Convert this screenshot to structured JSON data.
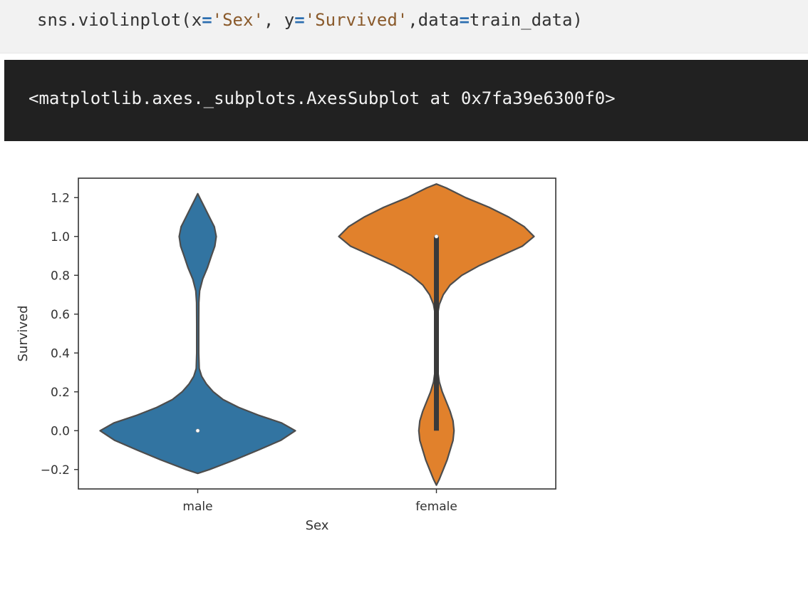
{
  "code_cell": {
    "func": "sns.violinplot",
    "open": "(x",
    "eq1": "=",
    "x_str": "'Sex'",
    "sep1": ", y",
    "eq2": "=",
    "y_str": "'Survived'",
    "sep2": ",data",
    "eq3": "=",
    "data_name": "train_data)"
  },
  "output_cell": {
    "text": "<matplotlib.axes._subplots.AxesSubplot at 0x7fa39e6300f0>"
  },
  "colors": {
    "male": "#3274a1",
    "female": "#e1812c",
    "outline": "#4d4d4d"
  },
  "chart_data": {
    "type": "violin",
    "xlabel": "Sex",
    "ylabel": "Survived",
    "ylim": [
      -0.3,
      1.3
    ],
    "yticks": [
      "−0.2",
      "0.0",
      "0.2",
      "0.4",
      "0.6",
      "0.8",
      "1.0",
      "1.2"
    ],
    "yticks_values": [
      -0.2,
      0.0,
      0.2,
      0.4,
      0.6,
      0.8,
      1.0,
      1.2
    ],
    "categories": [
      "male",
      "female"
    ],
    "violins": [
      {
        "category": "male",
        "color": "#3274a1",
        "median": 0.0,
        "q1": 0.0,
        "q3": 0.0,
        "density": [
          [
            -0.22,
            0.0
          ],
          [
            -0.2,
            0.12
          ],
          [
            -0.15,
            0.38
          ],
          [
            -0.1,
            0.62
          ],
          [
            -0.05,
            0.85
          ],
          [
            0.0,
            1.0
          ],
          [
            0.04,
            0.86
          ],
          [
            0.08,
            0.62
          ],
          [
            0.12,
            0.42
          ],
          [
            0.16,
            0.26
          ],
          [
            0.2,
            0.16
          ],
          [
            0.24,
            0.09
          ],
          [
            0.28,
            0.04
          ],
          [
            0.32,
            0.015
          ],
          [
            0.4,
            0.01
          ],
          [
            0.55,
            0.01
          ],
          [
            0.66,
            0.012
          ],
          [
            0.72,
            0.02
          ],
          [
            0.78,
            0.05
          ],
          [
            0.84,
            0.1
          ],
          [
            0.9,
            0.14
          ],
          [
            0.95,
            0.175
          ],
          [
            1.0,
            0.19
          ],
          [
            1.05,
            0.17
          ],
          [
            1.1,
            0.12
          ],
          [
            1.15,
            0.07
          ],
          [
            1.19,
            0.03
          ],
          [
            1.22,
            0.0
          ]
        ]
      },
      {
        "category": "female",
        "color": "#e1812c",
        "median": 1.0,
        "q1": 0.0,
        "q3": 1.0,
        "density": [
          [
            -0.28,
            0.0
          ],
          [
            -0.25,
            0.03
          ],
          [
            -0.2,
            0.07
          ],
          [
            -0.15,
            0.11
          ],
          [
            -0.1,
            0.14
          ],
          [
            -0.05,
            0.17
          ],
          [
            0.0,
            0.18
          ],
          [
            0.05,
            0.17
          ],
          [
            0.1,
            0.14
          ],
          [
            0.15,
            0.1
          ],
          [
            0.2,
            0.06
          ],
          [
            0.25,
            0.03
          ],
          [
            0.3,
            0.015
          ],
          [
            0.4,
            0.01
          ],
          [
            0.5,
            0.01
          ],
          [
            0.6,
            0.012
          ],
          [
            0.65,
            0.03
          ],
          [
            0.7,
            0.07
          ],
          [
            0.75,
            0.14
          ],
          [
            0.8,
            0.26
          ],
          [
            0.85,
            0.44
          ],
          [
            0.9,
            0.66
          ],
          [
            0.95,
            0.88
          ],
          [
            1.0,
            1.0
          ],
          [
            1.05,
            0.9
          ],
          [
            1.1,
            0.74
          ],
          [
            1.15,
            0.54
          ],
          [
            1.2,
            0.3
          ],
          [
            1.25,
            0.1
          ],
          [
            1.27,
            0.0
          ]
        ]
      }
    ]
  }
}
